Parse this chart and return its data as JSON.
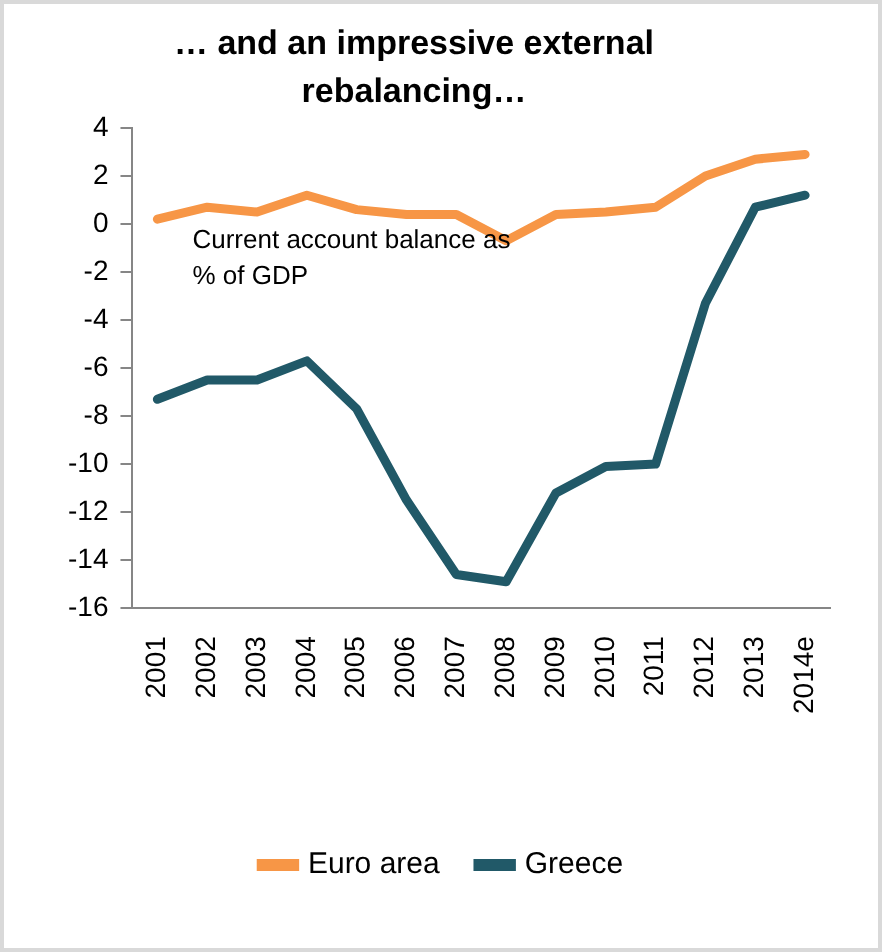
{
  "chart_data": {
    "type": "line",
    "title": "… and an impressive external rebalancing…",
    "categories": [
      "2001",
      "2002",
      "2003",
      "2004",
      "2005",
      "2006",
      "2007",
      "2008",
      "2009",
      "2010",
      "2011",
      "2012",
      "2013",
      "2014e"
    ],
    "series": [
      {
        "name": "Euro area",
        "color": "#f79646",
        "values": [
          0.2,
          0.7,
          0.5,
          1.2,
          0.6,
          0.4,
          0.4,
          -0.7,
          0.4,
          0.5,
          0.7,
          2.0,
          2.7,
          2.9
        ]
      },
      {
        "name": "Greece",
        "color": "#215968",
        "values": [
          -7.3,
          -6.5,
          -6.5,
          -5.7,
          -7.7,
          -11.5,
          -14.6,
          -14.9,
          -11.2,
          -10.1,
          -10.0,
          -3.3,
          0.7,
          1.2
        ]
      }
    ],
    "ylim": [
      -16,
      4
    ],
    "yticks": [
      -16,
      -14,
      -12,
      -10,
      -8,
      -6,
      -4,
      -2,
      0,
      2,
      4
    ],
    "annotations": [
      "Current account balance as % of GDP"
    ],
    "grid": false,
    "legend": "bottom",
    "marker": "none",
    "line_style": "solid"
  }
}
